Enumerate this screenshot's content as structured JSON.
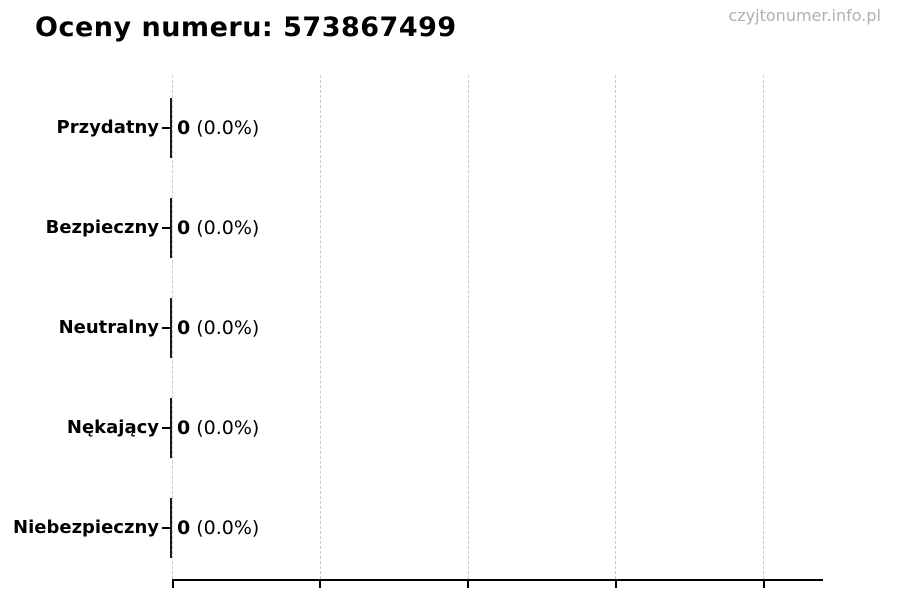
{
  "header": {
    "title": "Oceny numeru: 573867499",
    "watermark": "czyjtonumer.info.pl"
  },
  "chart_data": {
    "type": "bar",
    "orientation": "horizontal",
    "title": "Oceny numeru: 573867499",
    "categories": [
      "Przydatny",
      "Bezpieczny",
      "Neutralny",
      "Nękający",
      "Niebezpieczny"
    ],
    "values": [
      0,
      0,
      0,
      0,
      0
    ],
    "value_labels": [
      "0",
      "0",
      "0",
      "0",
      "0"
    ],
    "percent_labels": [
      "(0.0%)",
      "(0.0%)",
      "(0.0%)",
      "(0.0%)",
      "(0.0%)"
    ],
    "xlabel": "",
    "ylabel": "",
    "grid": "dashed-vertical",
    "gridline_count": 5,
    "legend": "none",
    "x_tick_labels_visible": false
  },
  "colors": {
    "text": "#000000",
    "watermark": "#b0b0b0",
    "gridline": "#c9c9c9",
    "axis": "#000000",
    "bar_edge": "#1a1a1a"
  }
}
